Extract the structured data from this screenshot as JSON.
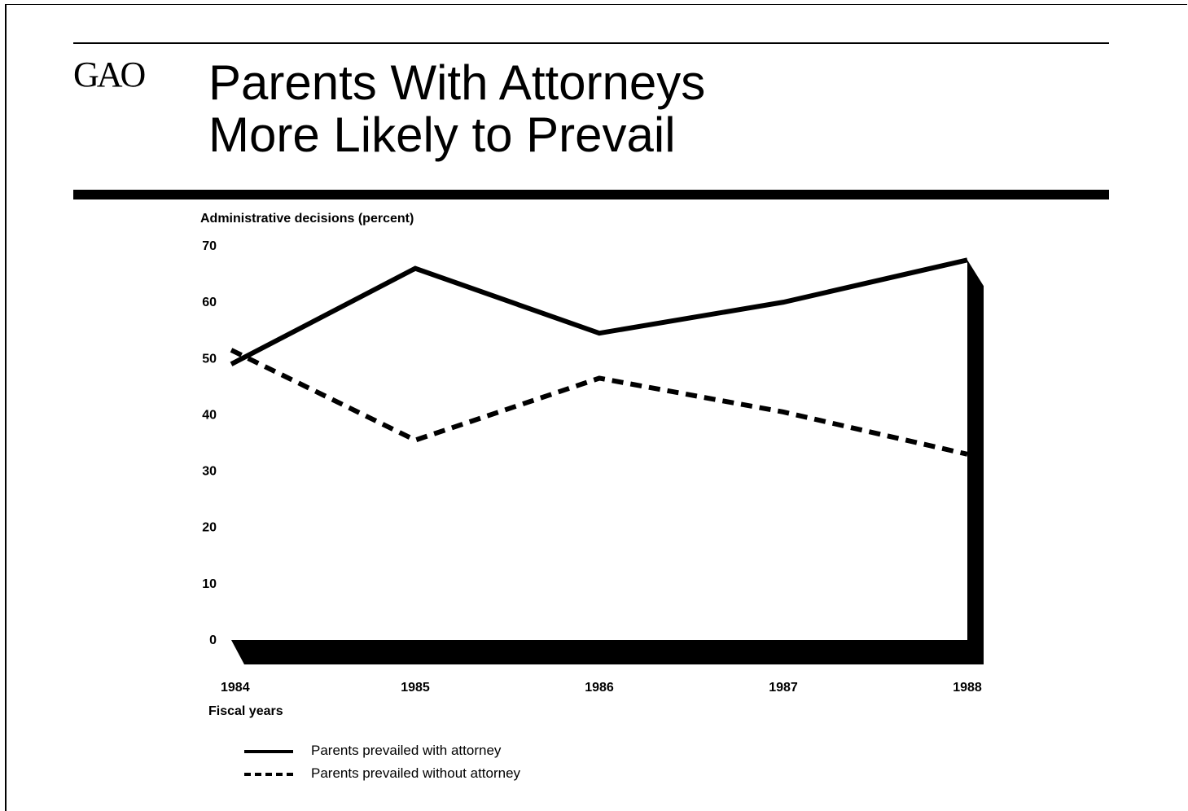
{
  "header": {
    "logo": "GAO",
    "title_line1": "Parents With Attorneys",
    "title_line2": "More Likely to Prevail"
  },
  "chart_data": {
    "type": "line",
    "title": "Parents With Attorneys More Likely to Prevail",
    "ylabel": "Administrative decisions (percent)",
    "xlabel": "Fiscal years",
    "x": [
      "1984",
      "1985",
      "1986",
      "1987",
      "1988"
    ],
    "ylim": [
      0,
      70
    ],
    "yticks": [
      0,
      10,
      20,
      30,
      40,
      50,
      60,
      70
    ],
    "grid": false,
    "legend_position": "bottom-left",
    "series": [
      {
        "name": "Parents prevailed with attorney",
        "style": "solid",
        "color": "#000000",
        "values": [
          49,
          66,
          54.5,
          60,
          67.5
        ]
      },
      {
        "name": "Parents prevailed without attorney",
        "style": "dashed",
        "color": "#000000",
        "values": [
          51.5,
          35.5,
          46.5,
          40.5,
          33
        ]
      }
    ]
  }
}
